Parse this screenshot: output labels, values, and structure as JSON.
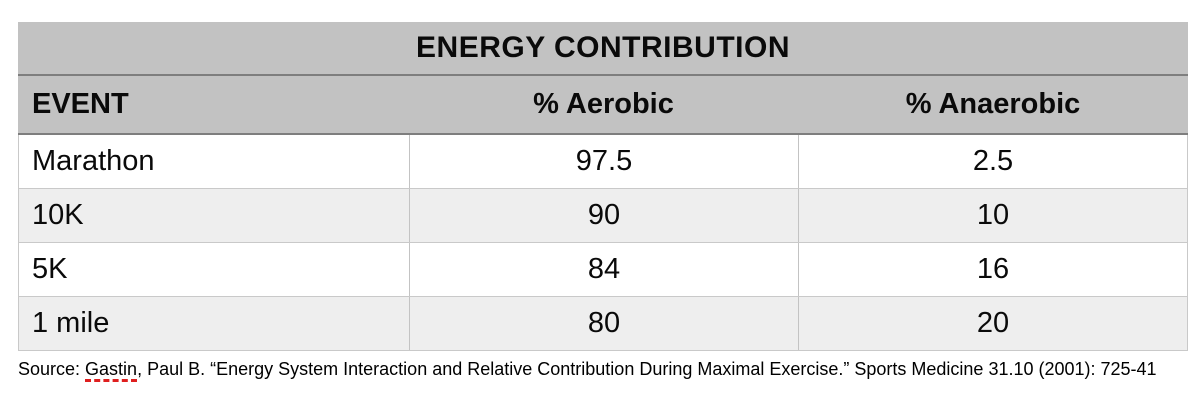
{
  "chart_data": {
    "type": "table",
    "title": "ENERGY CONTRIBUTION",
    "columns": [
      "EVENT",
      "% Aerobic",
      "% Anaerobic"
    ],
    "rows": [
      [
        "Marathon",
        "97.5",
        "2.5"
      ],
      [
        "10K",
        "90",
        "10"
      ],
      [
        "5K",
        "84",
        "16"
      ],
      [
        "1 mile",
        "80",
        "20"
      ]
    ]
  },
  "source": {
    "prefix": "Source: ",
    "misspelled_word": "Gastin",
    "rest": ", Paul B. “Energy System Interaction and Relative Contribution During Maximal Exercise.” Sports Medicine 31.10 (2001): 725-41"
  },
  "colors": {
    "header_band": "#c2c2c2",
    "row_default": "#ffffff",
    "row_alt": "#eeeeee",
    "dark_rule": "#7e7e7e",
    "cell_border": "#c9c9c9",
    "squiggle_red": "#df1f1f",
    "text": "#0a0a0a"
  }
}
